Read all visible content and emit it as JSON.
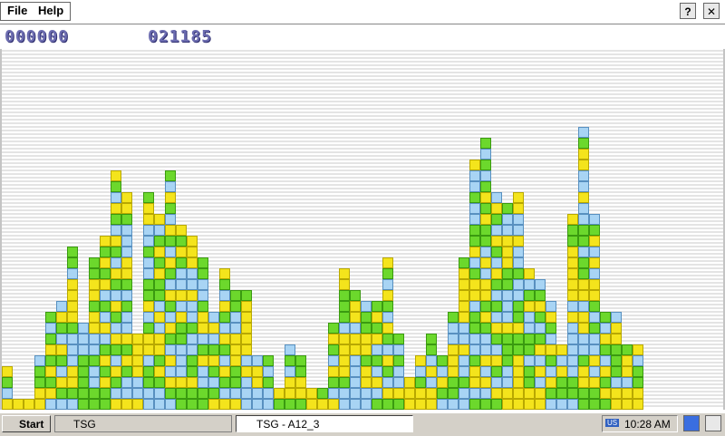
{
  "menu": {
    "items": [
      "File",
      "Help"
    ]
  },
  "score": {
    "current": "000000",
    "high": "021185"
  },
  "board": {
    "column_heights": [
      4,
      1,
      1,
      5,
      9,
      10,
      15,
      8,
      14,
      16,
      22,
      20,
      7,
      20,
      18,
      22,
      17,
      16,
      14,
      9,
      13,
      11,
      11,
      5,
      5,
      2,
      6,
      5,
      2,
      2,
      8,
      13,
      11,
      10,
      10,
      14,
      7,
      3,
      5,
      7,
      5,
      9,
      14,
      23,
      25,
      20,
      19,
      20,
      13,
      12,
      10,
      6,
      18,
      26,
      18,
      9,
      9,
      6,
      6
    ]
  },
  "taskbar": {
    "start": "Start",
    "folder": "TSG",
    "window": "TSG - A12_3",
    "input": "US",
    "clock": "10:28 AM"
  }
}
